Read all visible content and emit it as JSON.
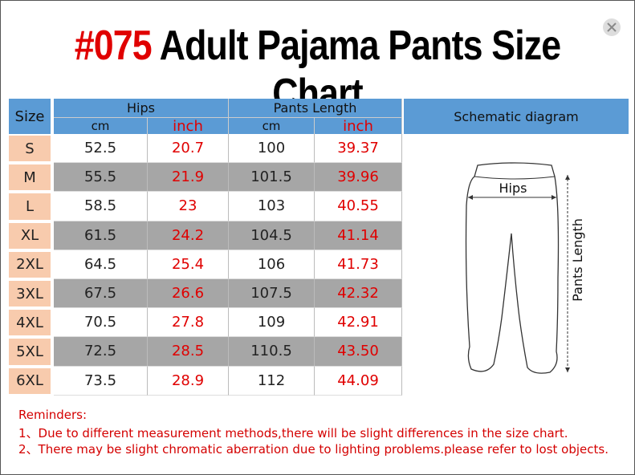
{
  "header": {
    "code": "#075",
    "title": "Adult Pajama Pants Size Chart"
  },
  "table": {
    "size_header": "Size",
    "group_headers": [
      "Hips",
      "Pants Length"
    ],
    "unit_headers": [
      "cm",
      "inch",
      "cm",
      "inch"
    ],
    "diagram_header": "Schematic diagram",
    "rows": [
      [
        "S",
        "52.5",
        "20.7",
        "100",
        "39.37"
      ],
      [
        "M",
        "55.5",
        "21.9",
        "101.5",
        "39.96"
      ],
      [
        "L",
        "58.5",
        "23",
        "103",
        "40.55"
      ],
      [
        "XL",
        "61.5",
        "24.2",
        "104.5",
        "41.14"
      ],
      [
        "2XL",
        "64.5",
        "25.4",
        "106",
        "41.73"
      ],
      [
        "3XL",
        "67.5",
        "26.6",
        "107.5",
        "42.32"
      ],
      [
        "4XL",
        "70.5",
        "27.8",
        "109",
        "42.91"
      ],
      [
        "5XL",
        "72.5",
        "28.5",
        "110.5",
        "43.50"
      ],
      [
        "6XL",
        "73.5",
        "28.9",
        "112",
        "44.09"
      ]
    ]
  },
  "diagram": {
    "hips_label": "Hips",
    "length_label": "Pants Length"
  },
  "reminders": {
    "title": "Reminders:",
    "items": [
      "1、Due to different measurement methods,there will be slight differences in the size chart.",
      "2、There may be slight chromatic aberration due to lighting problems.please refer to lost objects."
    ]
  }
}
